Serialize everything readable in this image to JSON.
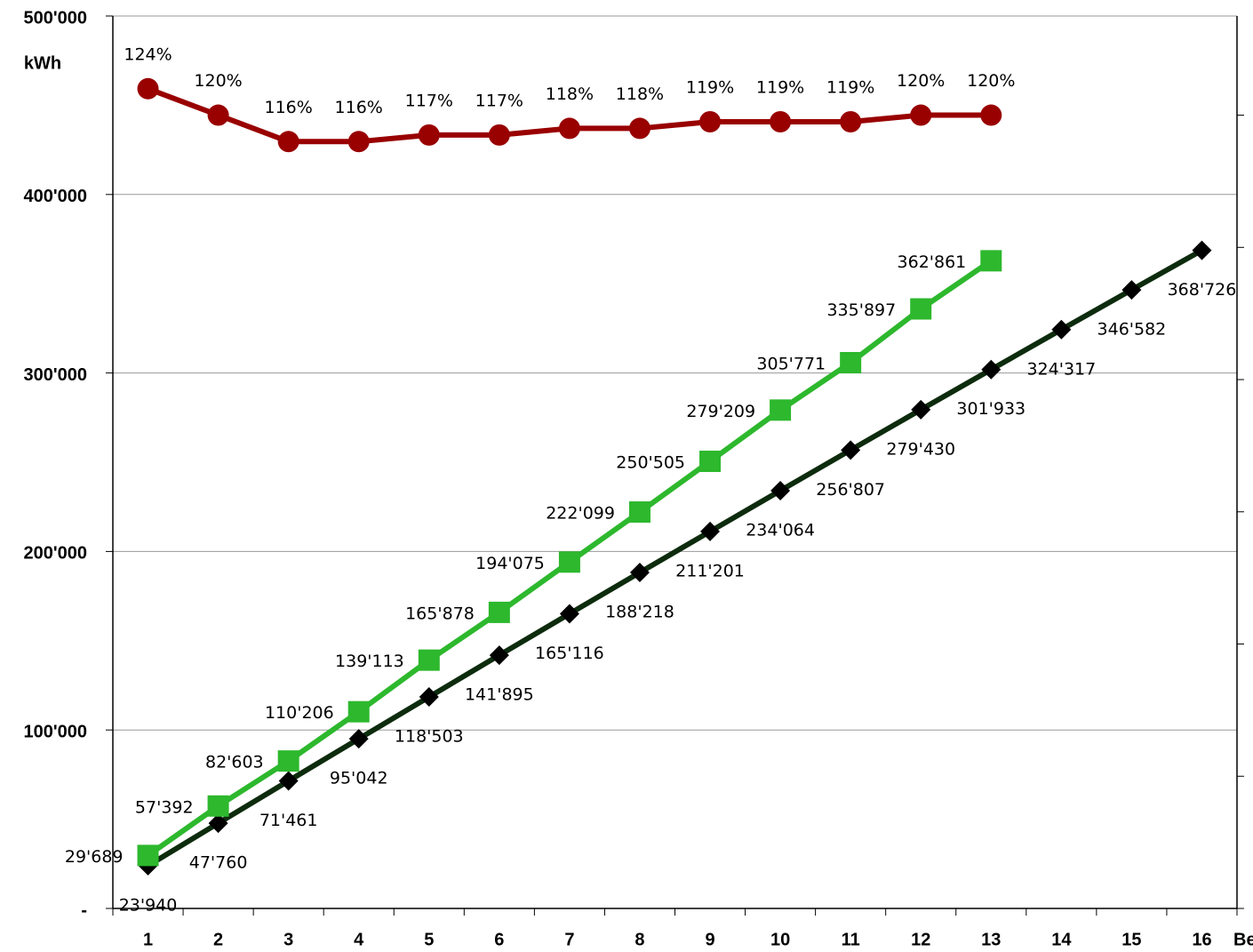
{
  "chart_data": {
    "type": "line",
    "y_label": "kWh",
    "x_label": "Be",
    "categories": [
      "1",
      "2",
      "3",
      "4",
      "5",
      "6",
      "7",
      "8",
      "9",
      "10",
      "11",
      "12",
      "13",
      "14",
      "15",
      "16"
    ],
    "ylim": [
      0,
      500000
    ],
    "yticks": [
      {
        "value": 0,
        "label": "-"
      },
      {
        "value": 100000,
        "label": "100'000"
      },
      {
        "value": 200000,
        "label": "200'000"
      },
      {
        "value": 300000,
        "label": "300'000"
      },
      {
        "value": 400000,
        "label": "400'000"
      },
      {
        "value": 500000,
        "label": "500'000"
      }
    ],
    "y2lim": [
      0,
      135
    ],
    "y2ticks": [
      0,
      20,
      40,
      60,
      80,
      100,
      120
    ],
    "grid": true,
    "series": [
      {
        "color": "#0d2b0d",
        "marker": "diamond",
        "values": [
          23940,
          47760,
          71461,
          95042,
          118503,
          141895,
          165116,
          188218,
          211201,
          234064,
          256807,
          279430,
          301933,
          324317,
          346582,
          368726
        ],
        "value_labels": [
          "23'940",
          "47'760",
          "71'461",
          "95'042",
          "118'503",
          "141'895",
          "165'116",
          "188'218",
          "211'201",
          "234'064",
          "256'807",
          "279'430",
          "301'933",
          "324'317",
          "346'582",
          "368'726"
        ]
      },
      {
        "color": "#2db82d",
        "marker": "square",
        "values": [
          29689,
          57392,
          82603,
          110206,
          139113,
          165878,
          194075,
          222099,
          250505,
          279209,
          305771,
          335897,
          362861,
          null,
          null,
          null
        ],
        "value_labels": [
          "29'689",
          "57'392",
          "82'603",
          "110'206",
          "139'113",
          "165'878",
          "194'075",
          "222'099",
          "250'505",
          "279'209",
          "305'771",
          "335'897",
          "362'861",
          null,
          null,
          null
        ]
      },
      {
        "color": "#990000",
        "marker": "circle",
        "axis": "y2",
        "values": [
          124,
          120,
          116,
          116,
          117,
          117,
          118,
          118,
          119,
          119,
          119,
          120,
          120,
          null,
          null,
          null
        ],
        "value_labels": [
          "124%",
          "120%",
          "116%",
          "116%",
          "117%",
          "117%",
          "118%",
          "118%",
          "119%",
          "119%",
          "119%",
          "120%",
          "120%",
          null,
          null,
          null
        ]
      }
    ]
  }
}
